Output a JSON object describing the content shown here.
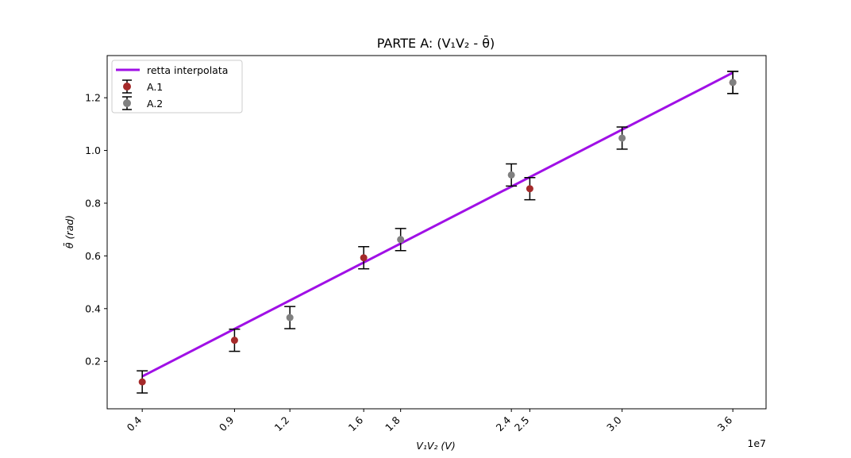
{
  "chart_data": {
    "type": "scatter",
    "title": "PARTE A: (V₁V₂ - θ̄)",
    "xlabel": "V₁V₂   (V)",
    "ylabel": "θ̄   (rad)",
    "x_offset_label": "1e7",
    "xlim": [
      0.21,
      3.78
    ],
    "ylim": [
      0.02,
      1.36
    ],
    "x_ticks": [
      0.4,
      0.9,
      1.2,
      1.6,
      1.8,
      2.4,
      2.5,
      3.0,
      3.6
    ],
    "x_tick_labels": [
      "0.4",
      "0.9",
      "1.2",
      "1.6",
      "1.8",
      "2.4",
      "2.5",
      "3.0",
      "3.6"
    ],
    "y_ticks": [
      0.2,
      0.4,
      0.6,
      0.8,
      1.0,
      1.2
    ],
    "y_tick_labels": [
      "0.2",
      "0.4",
      "0.6",
      "0.8",
      "1.0",
      "1.2"
    ],
    "grid": false,
    "legend_position": "top-left",
    "series": [
      {
        "name": "retta interpolata",
        "kind": "line",
        "color": "#a010e6",
        "x": [
          0.4,
          3.6
        ],
        "y": [
          0.143,
          1.295
        ]
      },
      {
        "name": "A.1",
        "kind": "errorbar",
        "color": "#a52a2a",
        "x": [
          0.4,
          0.9,
          1.6,
          2.5,
          3.6
        ],
        "y": [
          0.122,
          0.28,
          0.593,
          0.855,
          1.258
        ],
        "yerr": [
          0.042,
          0.042,
          0.042,
          0.042,
          0.042
        ]
      },
      {
        "name": "A.2",
        "kind": "errorbar",
        "color": "#808080",
        "x": [
          1.2,
          1.8,
          2.4,
          3.0,
          3.6
        ],
        "y": [
          0.366,
          0.662,
          0.907,
          1.047,
          1.258
        ],
        "yerr": [
          0.042,
          0.042,
          0.042,
          0.042,
          0.042
        ]
      }
    ]
  }
}
